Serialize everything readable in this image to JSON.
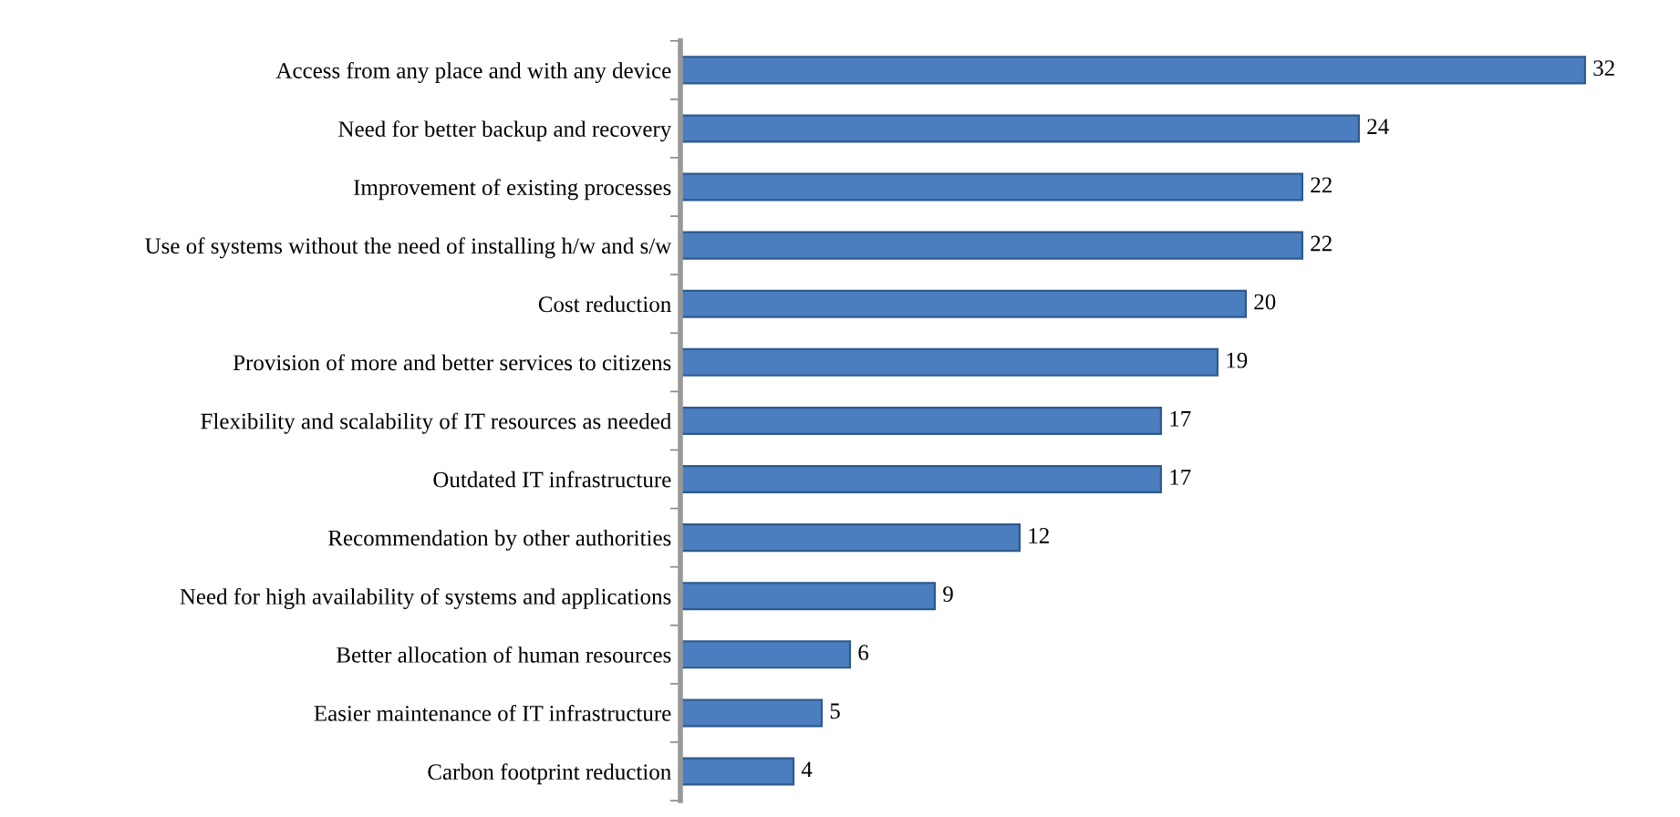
{
  "chart_data": {
    "type": "bar",
    "orientation": "horizontal",
    "data_labels": true,
    "grid": false,
    "color": "#4a7ebf",
    "categories": [
      "Access from any place and with any device",
      "Need for better backup and recovery",
      "Improvement of existing processes",
      "Use of systems without the need of installing h/w and s/w",
      "Cost reduction",
      "Provision of more and better services to citizens",
      "Flexibility and scalability of IT resources as needed",
      "Outdated IT infrastructure",
      "Recommendation by other authorities",
      "Need for high availability of systems and applications",
      "Better allocation of human resources",
      "Easier maintenance of IT infrastructure",
      "Carbon footprint reduction"
    ],
    "values": [
      32,
      24,
      22,
      22,
      20,
      19,
      17,
      17,
      12,
      9,
      6,
      5,
      4
    ]
  }
}
